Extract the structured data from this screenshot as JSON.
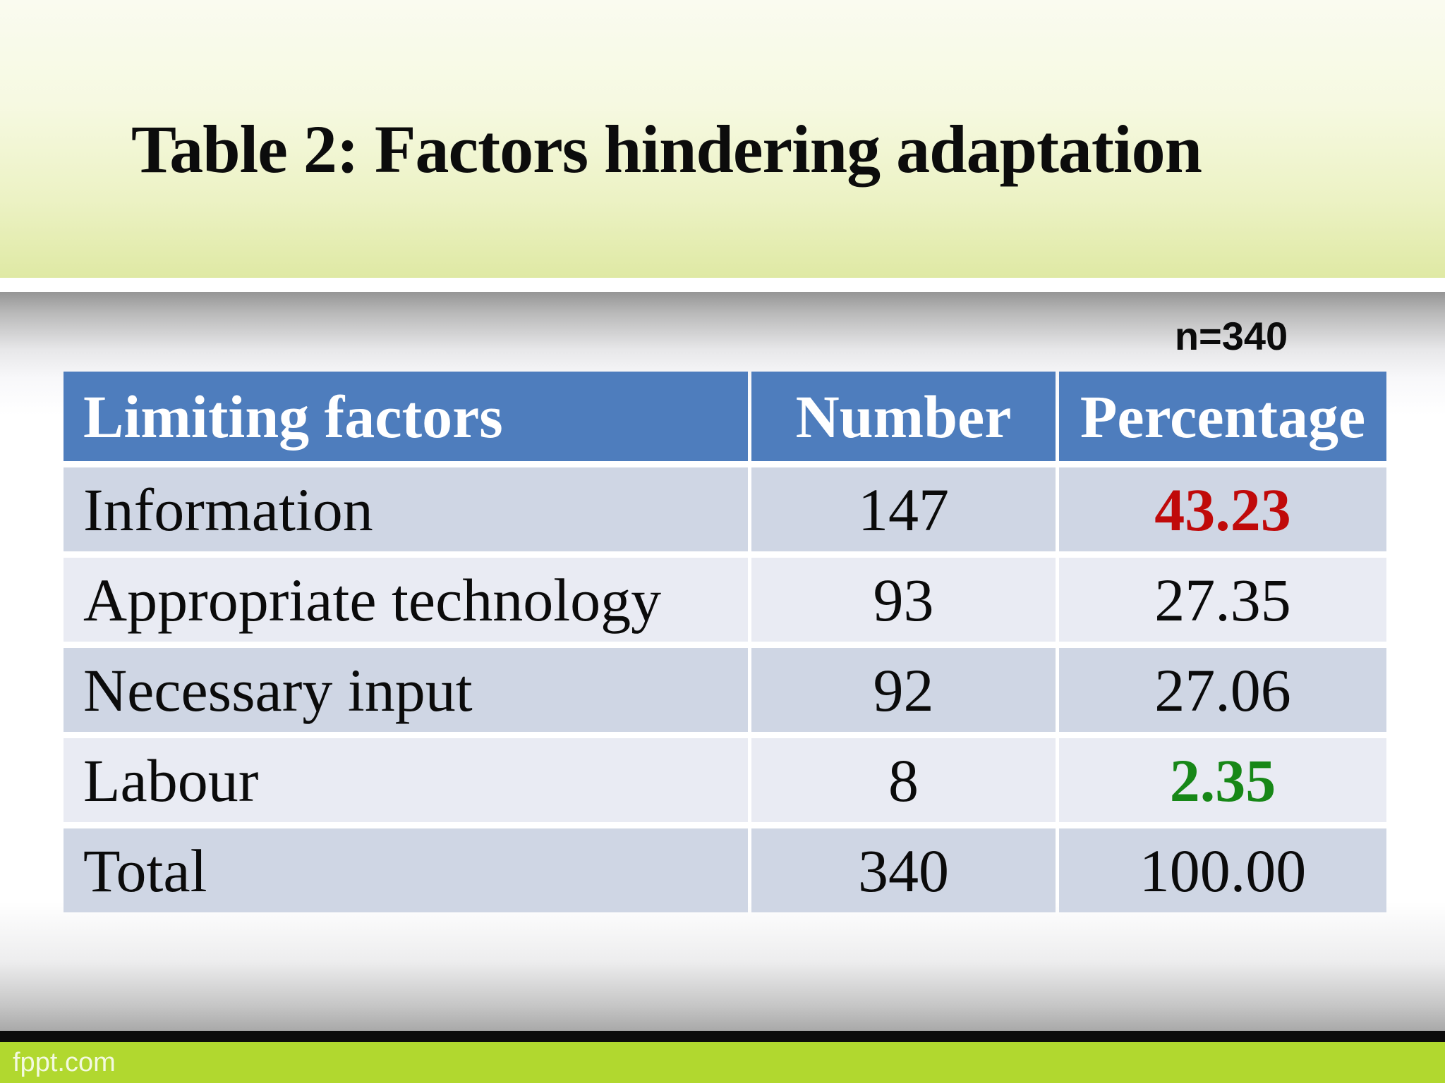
{
  "slide": {
    "title": "Table 2: Factors hindering adaptation",
    "sample_note": "n=340",
    "footer": {
      "brand": "fppt.com"
    }
  },
  "chart_data": {
    "type": "table",
    "title": "Table 2: Factors hindering adaptation",
    "note": "n=340",
    "columns": [
      "Limiting factors",
      "Number",
      "Percentage"
    ],
    "rows": [
      {
        "factor": "Information",
        "number": "147",
        "percentage": "43.23",
        "highlight": "red"
      },
      {
        "factor": "Appropriate technology",
        "number": "93",
        "percentage": "27.35",
        "highlight": null
      },
      {
        "factor": "Necessary input",
        "number": "92",
        "percentage": "27.06",
        "highlight": null
      },
      {
        "factor": "Labour",
        "number": "8",
        "percentage": "2.35",
        "highlight": "green"
      },
      {
        "factor": "Total",
        "number": "340",
        "percentage": "100.00",
        "highlight": null
      }
    ]
  },
  "colors": {
    "header-blue": "#4e7dbd",
    "row-odd": "#cfd6e4",
    "row-even": "#e9ebf3",
    "accent-red": "#c00a0a",
    "accent-green": "#178717",
    "footer-green": "#b1d82f"
  }
}
